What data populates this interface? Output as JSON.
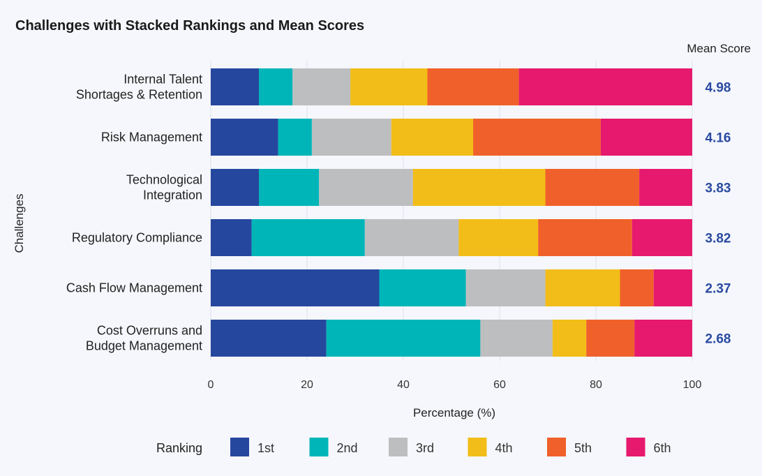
{
  "chart_data": {
    "type": "bar",
    "orientation": "horizontal",
    "stacked": true,
    "title": "Challenges with Stacked Rankings and Mean Scores",
    "xlabel": "Percentage (%)",
    "ylabel": "Challenges",
    "xlim": [
      0,
      100
    ],
    "x_ticks": [
      "0",
      "20",
      "40",
      "60",
      "80",
      "100"
    ],
    "grid": true,
    "legend": {
      "title": "Ranking",
      "placement": "bottom"
    },
    "mean_header": "Mean Score",
    "categories": [
      [
        "Internal Talent",
        "Shortages & Retention"
      ],
      [
        "Risk Management"
      ],
      [
        "Technological",
        "Integration"
      ],
      [
        "Regulatory Compliance"
      ],
      [
        "Cash Flow Management"
      ],
      [
        "Cost Overruns and",
        "Budget Management"
      ]
    ],
    "mean_scores": [
      "4.98",
      "4.16",
      "3.83",
      "3.82",
      "2.37",
      "2.68"
    ],
    "series": [
      {
        "name": "1st",
        "color": "#26479e",
        "values": [
          10,
          14,
          10,
          8.5,
          35,
          24
        ]
      },
      {
        "name": "2nd",
        "color": "#00b5b8",
        "values": [
          7,
          7,
          12.5,
          23.5,
          18,
          32
        ]
      },
      {
        "name": "3rd",
        "color": "#bdbec0",
        "values": [
          12,
          16.5,
          19.5,
          19.5,
          16.5,
          15
        ]
      },
      {
        "name": "4th",
        "color": "#f2bd18",
        "values": [
          16,
          17,
          27.5,
          16.5,
          15.5,
          7
        ]
      },
      {
        "name": "5th",
        "color": "#f0602a",
        "values": [
          19,
          26.5,
          19.5,
          19.5,
          7,
          10
        ]
      },
      {
        "name": "6th",
        "color": "#e6196e",
        "values": [
          36,
          19,
          11,
          12.5,
          8,
          12
        ]
      }
    ]
  }
}
